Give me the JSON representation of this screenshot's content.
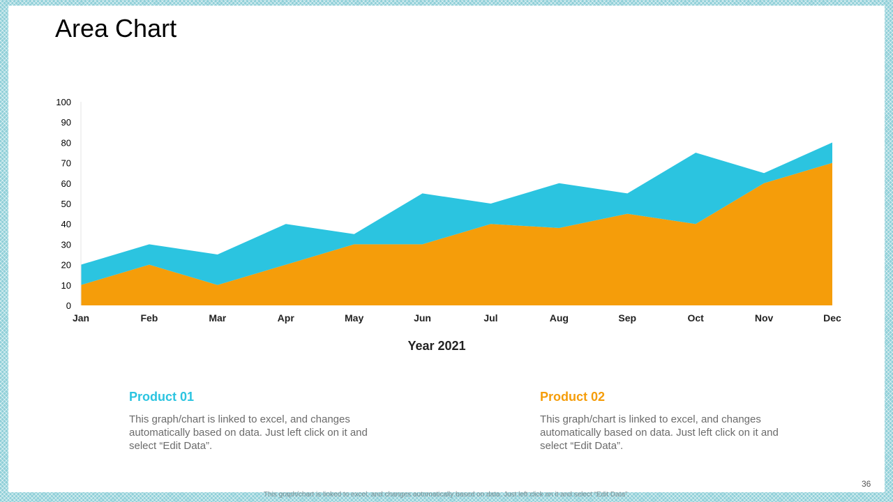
{
  "slide": {
    "title": "Area Chart",
    "page_number": "36",
    "footer_note": "This graph/chart is linked to excel, and changes automatically based on data. Just left click on it and select “Edit Data”."
  },
  "products": [
    {
      "title": "Product 01",
      "color": "#2bc4e0",
      "description": "This graph/chart is linked to excel, and changes automatically based on data. Just left click on it and select “Edit Data”."
    },
    {
      "title": "Product 02",
      "color": "#f59d0a",
      "description": "This graph/chart is linked to excel, and changes automatically based on data. Just left click on it and select “Edit Data”."
    }
  ],
  "chart_data": {
    "type": "area",
    "stacked": true,
    "categories": [
      "Jan",
      "Feb",
      "Mar",
      "Apr",
      "May",
      "Jun",
      "Jul",
      "Aug",
      "Sep",
      "Oct",
      "Nov",
      "Dec"
    ],
    "series": [
      {
        "color": "#f59d0a",
        "values": [
          10,
          20,
          10,
          20,
          30,
          30,
          40,
          38,
          45,
          40,
          60,
          70
        ]
      },
      {
        "color": "#2bc4e0",
        "values": [
          10,
          10,
          15,
          20,
          5,
          25,
          10,
          22,
          10,
          35,
          5,
          10
        ]
      }
    ],
    "xlabel": "Year 2021",
    "ylabel": "",
    "ylim": [
      0,
      100
    ],
    "yticks": [
      "0",
      "10",
      "20",
      "30",
      "40",
      "50",
      "60",
      "70",
      "80",
      "90",
      "100"
    ],
    "grid": false,
    "legend": "none"
  }
}
